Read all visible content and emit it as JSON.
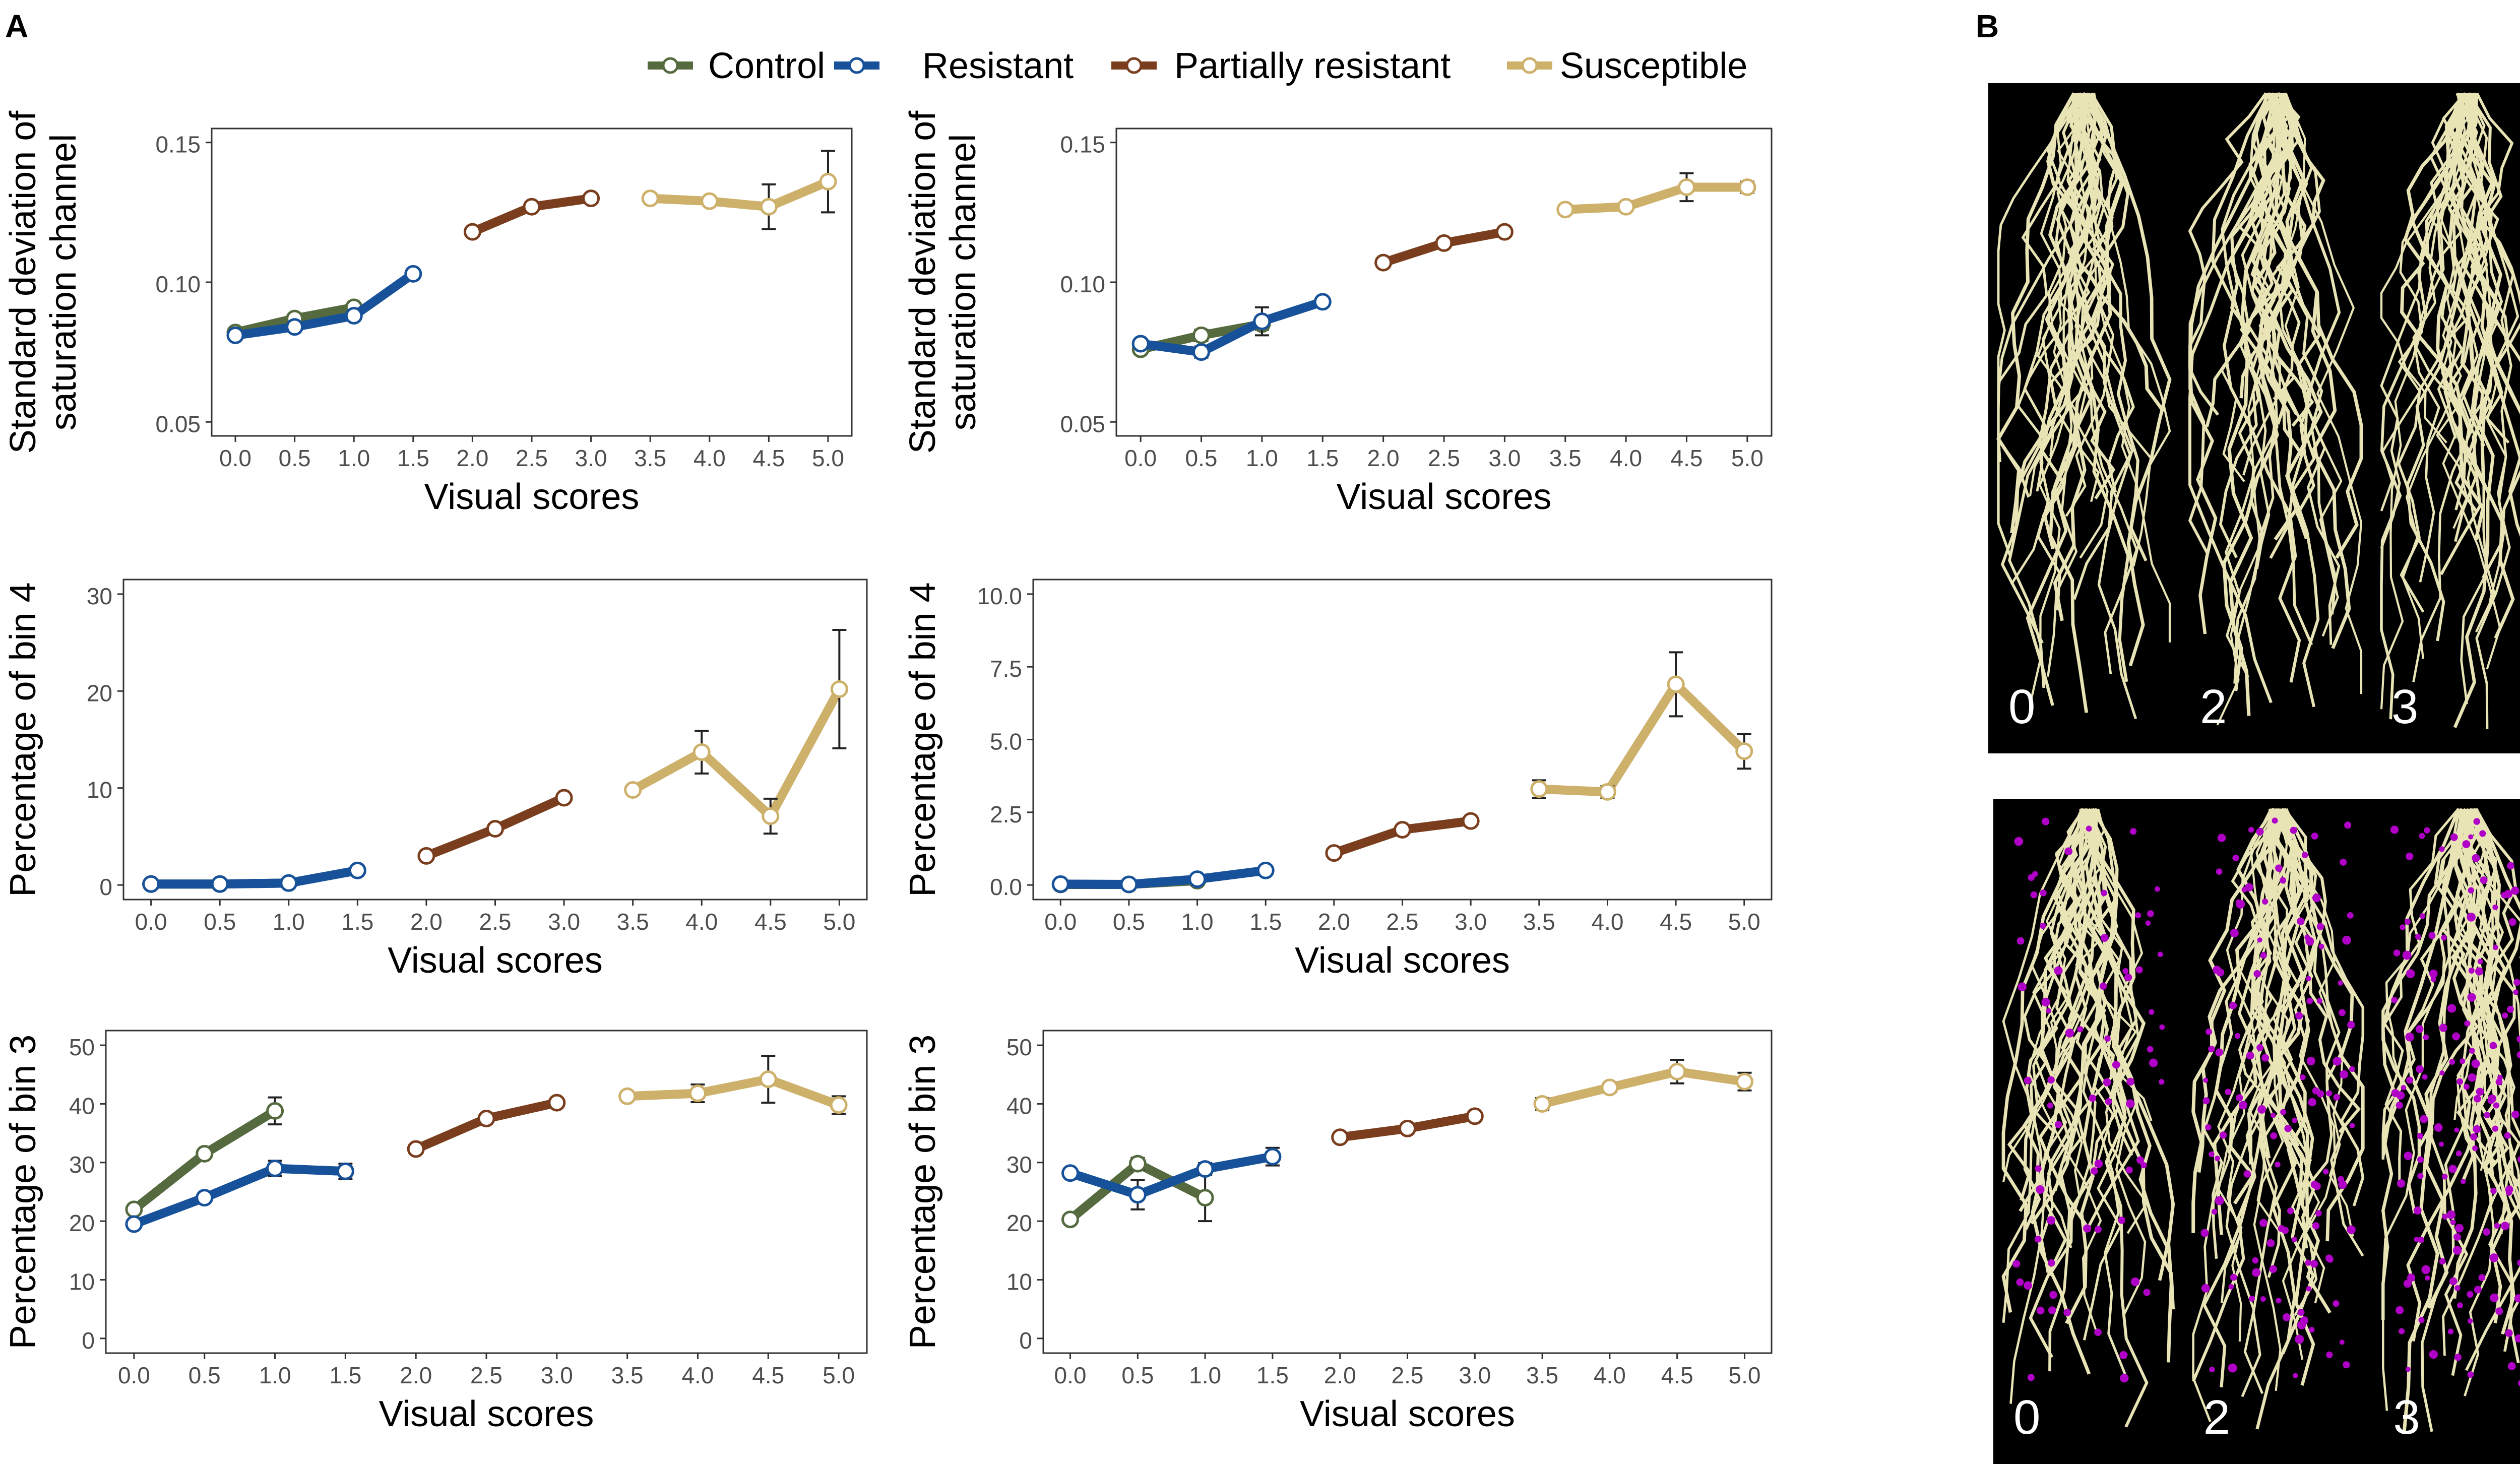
{
  "panel_labels": {
    "a": "A",
    "b": "B"
  },
  "colors": {
    "Control": "#556b3f",
    "Resistant": "#17519a",
    "Partially resistant": "#7a3e1e",
    "Susceptible": "#cdb06a"
  },
  "legend": {
    "items": [
      {
        "name": "Control",
        "label": "Control",
        "color": "#556b3f"
      },
      {
        "name": "Resistant",
        "label": "Resistant",
        "color": "#17519a"
      },
      {
        "name": "Partially resistant",
        "label": "Partially resistant",
        "color": "#7a3e1e"
      },
      {
        "name": "Susceptible",
        "label": "Susceptible",
        "color": "#cdb06a"
      }
    ]
  },
  "chart_data": [
    {
      "type": "line",
      "xlabel": "Visual scores",
      "ylabel": [
        "Standard deviation of",
        "saturation channel"
      ],
      "xlim": [
        0,
        5
      ],
      "xticks": [
        "0.0",
        "0.5",
        "1.0",
        "1.5",
        "2.0",
        "2.5",
        "3.0",
        "3.5",
        "4.0",
        "4.5",
        "5.0"
      ],
      "ylim": [
        0.045,
        0.155
      ],
      "yticks": [
        "0.05",
        "0.10",
        "0.15"
      ],
      "series": [
        {
          "name": "Control",
          "x": [
            0.0,
            0.5,
            1.0
          ],
          "y": [
            0.082,
            0.087,
            0.091
          ],
          "err": [
            0.001,
            0.001,
            0.001
          ]
        },
        {
          "name": "Resistant",
          "x": [
            0.0,
            0.5,
            1.0,
            1.5
          ],
          "y": [
            0.081,
            0.084,
            0.088,
            0.103
          ],
          "err": [
            0.001,
            0.001,
            0.001,
            0.001
          ]
        },
        {
          "name": "Partially resistant",
          "x": [
            2.0,
            2.5,
            3.0
          ],
          "y": [
            0.118,
            0.127,
            0.13
          ],
          "err": [
            0.001,
            0.001,
            0.001
          ]
        },
        {
          "name": "Susceptible",
          "x": [
            3.5,
            4.0,
            4.5,
            5.0
          ],
          "y": [
            0.13,
            0.129,
            0.127,
            0.136
          ],
          "err": [
            0.001,
            0.001,
            0.008,
            0.011
          ]
        }
      ]
    },
    {
      "type": "line",
      "xlabel": "Visual scores",
      "ylabel": [
        "Standard deviation of",
        "saturation channel"
      ],
      "xlim": [
        0,
        5
      ],
      "xticks": [
        "0.0",
        "0.5",
        "1.0",
        "1.5",
        "2.0",
        "2.5",
        "3.0",
        "3.5",
        "4.0",
        "4.5",
        "5.0"
      ],
      "ylim": [
        0.045,
        0.155
      ],
      "yticks": [
        "0.05",
        "0.10",
        "0.15"
      ],
      "series": [
        {
          "name": "Control",
          "x": [
            0.0,
            0.5,
            1.0
          ],
          "y": [
            0.076,
            0.081,
            0.085
          ],
          "err": [
            0.001,
            0.002,
            0.002
          ]
        },
        {
          "name": "Resistant",
          "x": [
            0.0,
            0.5,
            1.0,
            1.5
          ],
          "y": [
            0.078,
            0.075,
            0.086,
            0.093
          ],
          "err": [
            0.001,
            0.002,
            0.005,
            0.001
          ]
        },
        {
          "name": "Partially resistant",
          "x": [
            2.0,
            2.5,
            3.0
          ],
          "y": [
            0.107,
            0.114,
            0.118
          ],
          "err": [
            0.001,
            0.001,
            0.001
          ]
        },
        {
          "name": "Susceptible",
          "x": [
            3.5,
            4.0,
            4.5,
            5.0
          ],
          "y": [
            0.126,
            0.127,
            0.134,
            0.134
          ],
          "err": [
            0.001,
            0.001,
            0.005,
            0.002
          ]
        }
      ]
    },
    {
      "type": "line",
      "xlabel": "Visual scores",
      "ylabel": [
        "Percentage of bin 4"
      ],
      "xlim": [
        0,
        5
      ],
      "xticks": [
        "0.0",
        "0.5",
        "1.0",
        "1.5",
        "2.0",
        "2.5",
        "3.0",
        "3.5",
        "4.0",
        "4.5",
        "5.0"
      ],
      "ylim": [
        -1.5,
        31.5
      ],
      "yticks": [
        "0",
        "10",
        "20",
        "30"
      ],
      "series": [
        {
          "name": "Control",
          "x": [
            0.0,
            0.5,
            1.0
          ],
          "y": [
            0.1,
            0.1,
            0.2
          ],
          "err": [
            0,
            0,
            0
          ]
        },
        {
          "name": "Resistant",
          "x": [
            0.0,
            0.5,
            1.0,
            1.5
          ],
          "y": [
            0.1,
            0.1,
            0.2,
            1.5
          ],
          "err": [
            0,
            0,
            0,
            0
          ]
        },
        {
          "name": "Partially resistant",
          "x": [
            2.0,
            2.5,
            3.0
          ],
          "y": [
            3.0,
            5.8,
            9.0
          ],
          "err": [
            0,
            0,
            0
          ]
        },
        {
          "name": "Susceptible",
          "x": [
            3.5,
            4.0,
            4.5,
            5.0
          ],
          "y": [
            9.8,
            13.7,
            7.1,
            20.2
          ],
          "err": [
            0.3,
            2.2,
            1.8,
            6.1
          ]
        }
      ]
    },
    {
      "type": "line",
      "xlabel": "Visual scores",
      "ylabel": [
        "Percentage of bin 4"
      ],
      "xlim": [
        0,
        5
      ],
      "xticks": [
        "0.0",
        "0.5",
        "1.0",
        "1.5",
        "2.0",
        "2.5",
        "3.0",
        "3.5",
        "4.0",
        "4.5",
        "5.0"
      ],
      "ylim": [
        -0.5,
        10.5
      ],
      "yticks": [
        "0.0",
        "2.5",
        "5.0",
        "7.5",
        "10.0"
      ],
      "series": [
        {
          "name": "Control",
          "x": [
            0.0,
            0.5,
            1.0
          ],
          "y": [
            0.02,
            0.02,
            0.15
          ],
          "err": [
            0,
            0,
            0
          ]
        },
        {
          "name": "Resistant",
          "x": [
            0.0,
            0.5,
            1.0,
            1.5
          ],
          "y": [
            0.03,
            0.02,
            0.2,
            0.5
          ],
          "err": [
            0,
            0,
            0,
            0
          ]
        },
        {
          "name": "Partially resistant",
          "x": [
            2.0,
            2.5,
            3.0
          ],
          "y": [
            1.1,
            1.9,
            2.2
          ],
          "err": [
            0,
            0,
            0
          ]
        },
        {
          "name": "Susceptible",
          "x": [
            3.5,
            4.0,
            4.5,
            5.0
          ],
          "y": [
            3.3,
            3.2,
            6.9,
            4.6
          ],
          "err": [
            0.3,
            0.2,
            1.1,
            0.6
          ]
        }
      ]
    },
    {
      "type": "line",
      "xlabel": "Visual scores",
      "ylabel": [
        "Percentage of bin 3"
      ],
      "xlim": [
        0,
        5
      ],
      "xticks": [
        "0.0",
        "0.5",
        "1.0",
        "1.5",
        "2.0",
        "2.5",
        "3.0",
        "3.5",
        "4.0",
        "4.5",
        "5.0"
      ],
      "ylim": [
        -2.5,
        52.5
      ],
      "yticks": [
        "0",
        "10",
        "20",
        "30",
        "40",
        "50"
      ],
      "series": [
        {
          "name": "Control",
          "x": [
            0.0,
            0.5,
            1.0
          ],
          "y": [
            22.0,
            31.5,
            38.8
          ],
          "err": [
            0.3,
            0.5,
            2.3
          ]
        },
        {
          "name": "Resistant",
          "x": [
            0.0,
            0.5,
            1.0,
            1.5
          ],
          "y": [
            19.5,
            24.0,
            29.0,
            28.5
          ],
          "err": [
            0.3,
            0.5,
            1.3,
            1.3
          ]
        },
        {
          "name": "Partially resistant",
          "x": [
            2.0,
            2.5,
            3.0
          ],
          "y": [
            32.3,
            37.5,
            40.2
          ],
          "err": [
            0.3,
            0.3,
            0.3
          ]
        },
        {
          "name": "Susceptible",
          "x": [
            3.5,
            4.0,
            4.5,
            5.0
          ],
          "y": [
            41.3,
            41.8,
            44.2,
            39.8
          ],
          "err": [
            0.3,
            1.5,
            4.0,
            1.5
          ]
        }
      ]
    },
    {
      "type": "line",
      "xlabel": "Visual scores",
      "ylabel": [
        "Percentage of bin 3"
      ],
      "xlim": [
        0,
        5
      ],
      "xticks": [
        "0.0",
        "0.5",
        "1.0",
        "1.5",
        "2.0",
        "2.5",
        "3.0",
        "3.5",
        "4.0",
        "4.5",
        "5.0"
      ],
      "ylim": [
        -2.5,
        52.5
      ],
      "yticks": [
        "0",
        "10",
        "20",
        "30",
        "40",
        "50"
      ],
      "series": [
        {
          "name": "Control",
          "x": [
            0.0,
            0.5,
            1.0
          ],
          "y": [
            20.3,
            29.8,
            24.0
          ],
          "err": [
            0.3,
            1.0,
            4.0
          ]
        },
        {
          "name": "Resistant",
          "x": [
            0.0,
            0.5,
            1.0,
            1.5
          ],
          "y": [
            28.2,
            24.5,
            28.9,
            31.0
          ],
          "err": [
            0.3,
            2.5,
            1.0,
            1.5
          ]
        },
        {
          "name": "Partially resistant",
          "x": [
            2.0,
            2.5,
            3.0
          ],
          "y": [
            34.3,
            35.8,
            37.9
          ],
          "err": [
            0.3,
            0.3,
            0.3
          ]
        },
        {
          "name": "Susceptible",
          "x": [
            3.5,
            4.0,
            4.5,
            5.0
          ],
          "y": [
            40.0,
            42.8,
            45.5,
            43.8
          ],
          "err": [
            1.0,
            0.8,
            2.0,
            1.5
          ]
        }
      ]
    }
  ],
  "root_images": [
    {
      "labels": [
        "0",
        "2",
        "3"
      ],
      "lesions": false
    },
    {
      "labels": [
        "0",
        "2",
        "3"
      ],
      "lesions": true
    }
  ]
}
